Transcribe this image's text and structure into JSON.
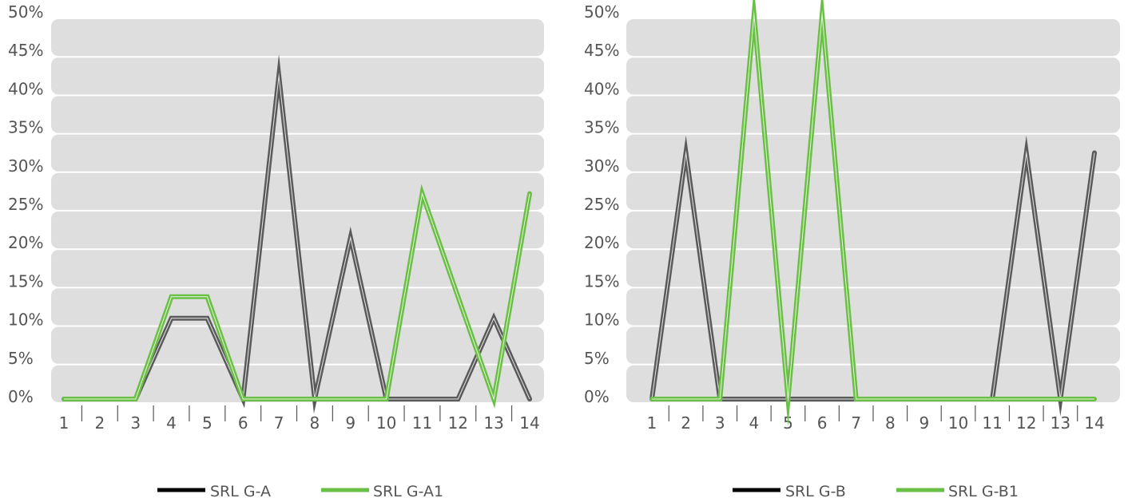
{
  "chart_data": [
    {
      "type": "line",
      "x": [
        "1",
        "2",
        "3",
        "4",
        "5",
        "6",
        "7",
        "8",
        "9",
        "10",
        "11",
        "12",
        "13",
        "14"
      ],
      "ylim": [
        0,
        50
      ],
      "yticks": [
        "0%",
        "5%",
        "10%",
        "15%",
        "20%",
        "25%",
        "30%",
        "35%",
        "40%",
        "45%",
        "50%"
      ],
      "grid": true,
      "legend_position": "bottom",
      "series": [
        {
          "name": "SRL G-A",
          "color": "#5a5a5a",
          "legend_color": "#000000",
          "values": [
            0,
            0,
            0,
            10.5,
            10.5,
            0,
            42,
            0,
            21,
            0,
            0,
            0,
            10.5,
            0
          ]
        },
        {
          "name": "SRL G-A1",
          "color": "#6abf45",
          "legend_color": "#6abf45",
          "values": [
            0,
            0,
            0,
            13.3,
            13.3,
            0,
            0,
            0,
            0,
            0,
            26.7,
            13.3,
            0,
            26.7
          ]
        }
      ]
    },
    {
      "type": "line",
      "x": [
        "1",
        "2",
        "3",
        "4",
        "5",
        "6",
        "7",
        "8",
        "9",
        "10",
        "11",
        "12",
        "13",
        "14"
      ],
      "ylim": [
        0,
        50
      ],
      "yticks": [
        "0%",
        "5%",
        "10%",
        "15%",
        "20%",
        "25%",
        "30%",
        "35%",
        "40%",
        "45%",
        "50%"
      ],
      "grid": true,
      "legend_position": "bottom",
      "series": [
        {
          "name": "SRL G-B",
          "color": "#5a5a5a",
          "legend_color": "#000000",
          "values": [
            0,
            32,
            0,
            0,
            0,
            0,
            0,
            0,
            0,
            0,
            0,
            32,
            0,
            32
          ]
        },
        {
          "name": "SRL G-B1",
          "color": "#6abf45",
          "legend_color": "#6abf45",
          "values": [
            0,
            0,
            0,
            50,
            0,
            50,
            0,
            0,
            0,
            0,
            0,
            0,
            0,
            0
          ]
        }
      ]
    }
  ]
}
